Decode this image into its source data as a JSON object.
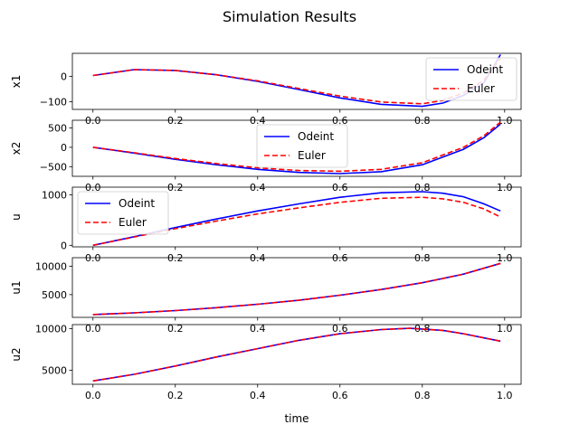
{
  "figure": {
    "title": "Simulation Results",
    "xlabel": "time"
  },
  "chart_data": [
    {
      "type": "line",
      "ylabel": "x1",
      "xlim": [
        -0.05,
        1.04
      ],
      "ylim": [
        -130,
        90
      ],
      "xticks": [
        0.0,
        0.2,
        0.4,
        0.6,
        0.8,
        1.0
      ],
      "xtick_labels": [
        "0.0",
        "0.2",
        "0.4",
        "0.6",
        "0.8",
        "1.0"
      ],
      "yticks": [
        0,
        -100
      ],
      "ytick_labels": [
        "0",
        "−100"
      ],
      "legend": "upper right",
      "series": [
        {
          "name": "Odeint",
          "color": "#0000ff",
          "style": "solid",
          "x": [
            0.0,
            0.1,
            0.2,
            0.3,
            0.4,
            0.5,
            0.6,
            0.7,
            0.8,
            0.85,
            0.9,
            0.95,
            0.99
          ],
          "y": [
            3,
            26,
            23,
            6,
            -20,
            -52,
            -85,
            -110,
            -118,
            -105,
            -75,
            -25,
            85
          ]
        },
        {
          "name": "Euler",
          "color": "#ff0000",
          "style": "dashed",
          "x": [
            0.0,
            0.1,
            0.2,
            0.3,
            0.4,
            0.5,
            0.6,
            0.7,
            0.8,
            0.85,
            0.9,
            0.95,
            0.99
          ],
          "y": [
            3,
            26,
            23,
            6,
            -18,
            -48,
            -78,
            -101,
            -108,
            -95,
            -65,
            -15,
            70
          ]
        }
      ]
    },
    {
      "type": "line",
      "ylabel": "x2",
      "xlim": [
        -0.05,
        1.04
      ],
      "ylim": [
        -750,
        700
      ],
      "xticks": [
        0.0,
        0.2,
        0.4,
        0.6,
        0.8,
        1.0
      ],
      "xtick_labels": [
        "0.0",
        "0.2",
        "0.4",
        "0.6",
        "0.8",
        "1.0"
      ],
      "yticks": [
        500,
        0,
        -500
      ],
      "ytick_labels": [
        "500",
        "0",
        "−500"
      ],
      "legend": "upper center",
      "series": [
        {
          "name": "Odeint",
          "color": "#0000ff",
          "style": "solid",
          "x": [
            0.0,
            0.1,
            0.2,
            0.3,
            0.4,
            0.5,
            0.6,
            0.7,
            0.8,
            0.9,
            0.95,
            0.99
          ],
          "y": [
            0,
            -150,
            -310,
            -450,
            -570,
            -650,
            -680,
            -630,
            -450,
            -50,
            250,
            600
          ]
        },
        {
          "name": "Euler",
          "color": "#ff0000",
          "style": "dashed",
          "x": [
            0.0,
            0.1,
            0.2,
            0.3,
            0.4,
            0.5,
            0.6,
            0.7,
            0.8,
            0.9,
            0.95,
            0.99
          ],
          "y": [
            0,
            -140,
            -290,
            -420,
            -530,
            -600,
            -620,
            -570,
            -400,
            0,
            300,
            650
          ]
        }
      ]
    },
    {
      "type": "line",
      "ylabel": "u",
      "xlim": [
        -0.05,
        1.04
      ],
      "ylim": [
        -30,
        1150
      ],
      "xticks": [
        0.0,
        0.2,
        0.4,
        0.6,
        0.8,
        1.0
      ],
      "xtick_labels": [
        "0.0",
        "0.2",
        "0.4",
        "0.6",
        "0.8",
        "1.0"
      ],
      "yticks": [
        1000,
        0
      ],
      "ytick_labels": [
        "1000",
        "0"
      ],
      "legend": "upper left",
      "series": [
        {
          "name": "Odeint",
          "color": "#0000ff",
          "style": "solid",
          "x": [
            0.0,
            0.1,
            0.2,
            0.3,
            0.4,
            0.5,
            0.6,
            0.7,
            0.8,
            0.85,
            0.9,
            0.95,
            0.99
          ],
          "y": [
            0,
            170,
            350,
            520,
            680,
            820,
            950,
            1040,
            1060,
            1030,
            960,
            820,
            680
          ]
        },
        {
          "name": "Euler",
          "color": "#ff0000",
          "style": "dashed",
          "x": [
            0.0,
            0.1,
            0.2,
            0.3,
            0.4,
            0.5,
            0.6,
            0.7,
            0.8,
            0.85,
            0.9,
            0.95,
            0.99
          ],
          "y": [
            0,
            165,
            330,
            480,
            620,
            740,
            850,
            930,
            950,
            920,
            850,
            720,
            560
          ]
        }
      ]
    },
    {
      "type": "line",
      "ylabel": "u1",
      "xlim": [
        -0.05,
        1.04
      ],
      "ylim": [
        1000,
        11500
      ],
      "xticks": [
        0.0,
        0.2,
        0.4,
        0.6,
        0.8,
        1.0
      ],
      "xtick_labels": [
        "0.0",
        "0.2",
        "0.4",
        "0.6",
        "0.8",
        "1.0"
      ],
      "yticks": [
        10000,
        5000
      ],
      "ytick_labels": [
        "10000",
        "5000"
      ],
      "legend": "none",
      "series": [
        {
          "color": "#0000ff",
          "style": "solid",
          "x": [
            0.0,
            0.1,
            0.2,
            0.3,
            0.4,
            0.5,
            0.6,
            0.7,
            0.8,
            0.9,
            0.99
          ],
          "y": [
            1500,
            1800,
            2200,
            2700,
            3300,
            4000,
            4900,
            5900,
            7100,
            8600,
            10500
          ]
        },
        {
          "color": "#ff0000",
          "style": "dashed",
          "x": [
            0.0,
            0.1,
            0.2,
            0.3,
            0.4,
            0.5,
            0.6,
            0.7,
            0.8,
            0.9,
            0.99
          ],
          "y": [
            1500,
            1800,
            2200,
            2700,
            3300,
            4000,
            4900,
            5900,
            7100,
            8600,
            10500
          ]
        }
      ]
    },
    {
      "type": "line",
      "ylabel": "u2",
      "xlim": [
        -0.05,
        1.04
      ],
      "ylim": [
        3300,
        10500
      ],
      "xticks": [
        0.0,
        0.2,
        0.4,
        0.6,
        0.8,
        1.0
      ],
      "xtick_labels": [
        "0.0",
        "0.2",
        "0.4",
        "0.6",
        "0.8",
        "1.0"
      ],
      "yticks": [
        10000,
        5000
      ],
      "ytick_labels": [
        "10000",
        "5000"
      ],
      "legend": "none",
      "series": [
        {
          "color": "#0000ff",
          "style": "solid",
          "x": [
            0.0,
            0.1,
            0.2,
            0.3,
            0.4,
            0.5,
            0.6,
            0.7,
            0.77,
            0.85,
            0.9,
            0.95,
            0.99
          ],
          "y": [
            3700,
            4500,
            5500,
            6600,
            7600,
            8600,
            9400,
            9900,
            10050,
            9800,
            9400,
            8900,
            8500
          ]
        },
        {
          "color": "#ff0000",
          "style": "dashed",
          "x": [
            0.0,
            0.1,
            0.2,
            0.3,
            0.4,
            0.5,
            0.6,
            0.7,
            0.77,
            0.85,
            0.9,
            0.95,
            0.99
          ],
          "y": [
            3700,
            4500,
            5500,
            6600,
            7600,
            8600,
            9400,
            9900,
            10050,
            9800,
            9400,
            8900,
            8500
          ]
        }
      ]
    }
  ]
}
